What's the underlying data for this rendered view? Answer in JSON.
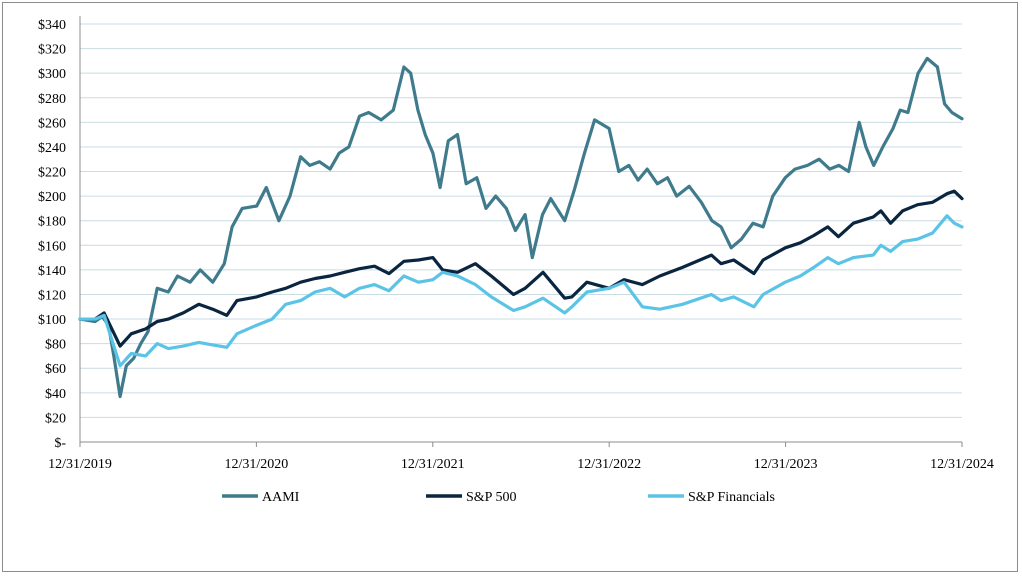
{
  "chart_data": {
    "type": "line",
    "x_ticks": [
      "12/31/2019",
      "12/31/2020",
      "12/31/2021",
      "12/31/2022",
      "12/31/2023",
      "12/31/2024"
    ],
    "y_ticks": [
      "$340",
      "$320",
      "$300",
      "$280",
      "$260",
      "$240",
      "$220",
      "$200",
      "$180",
      "$160",
      "$140",
      "$120",
      "$100",
      "$80",
      "$60",
      "$40",
      "$20",
      "$-"
    ],
    "ylim": [
      0,
      340
    ],
    "grid": true,
    "legend_position": "bottom",
    "series": [
      {
        "name": "AAMI",
        "color": "#3f7b8c",
        "points": [
          [
            "2019-12-31",
            100
          ],
          [
            "2020-01-31",
            98
          ],
          [
            "2020-02-15",
            102
          ],
          [
            "2020-02-28",
            95
          ],
          [
            "2020-03-10",
            70
          ],
          [
            "2020-03-23",
            37
          ],
          [
            "2020-04-05",
            62
          ],
          [
            "2020-04-20",
            68
          ],
          [
            "2020-05-05",
            80
          ],
          [
            "2020-05-20",
            90
          ],
          [
            "2020-06-08",
            125
          ],
          [
            "2020-07-01",
            122
          ],
          [
            "2020-07-20",
            135
          ],
          [
            "2020-08-15",
            130
          ],
          [
            "2020-09-05",
            140
          ],
          [
            "2020-10-01",
            130
          ],
          [
            "2020-10-25",
            145
          ],
          [
            "2020-11-10",
            175
          ],
          [
            "2020-12-01",
            190
          ],
          [
            "2020-12-31",
            192
          ],
          [
            "2021-01-20",
            207
          ],
          [
            "2021-02-15",
            180
          ],
          [
            "2021-03-10",
            200
          ],
          [
            "2021-04-01",
            232
          ],
          [
            "2021-04-20",
            225
          ],
          [
            "2021-05-10",
            228
          ],
          [
            "2021-06-01",
            222
          ],
          [
            "2021-06-20",
            235
          ],
          [
            "2021-07-10",
            240
          ],
          [
            "2021-08-01",
            265
          ],
          [
            "2021-08-20",
            268
          ],
          [
            "2021-09-15",
            262
          ],
          [
            "2021-10-10",
            270
          ],
          [
            "2021-11-01",
            305
          ],
          [
            "2021-11-15",
            300
          ],
          [
            "2021-11-30",
            270
          ],
          [
            "2021-12-15",
            250
          ],
          [
            "2021-12-31",
            235
          ],
          [
            "2022-01-15",
            207
          ],
          [
            "2022-02-01",
            245
          ],
          [
            "2022-02-20",
            250
          ],
          [
            "2022-03-10",
            210
          ],
          [
            "2022-04-01",
            215
          ],
          [
            "2022-04-20",
            190
          ],
          [
            "2022-05-10",
            200
          ],
          [
            "2022-06-01",
            190
          ],
          [
            "2022-06-20",
            172
          ],
          [
            "2022-07-10",
            185
          ],
          [
            "2022-07-25",
            150
          ],
          [
            "2022-08-15",
            185
          ],
          [
            "2022-09-01",
            198
          ],
          [
            "2022-09-30",
            180
          ],
          [
            "2022-10-20",
            205
          ],
          [
            "2022-11-10",
            235
          ],
          [
            "2022-12-01",
            262
          ],
          [
            "2022-12-31",
            255
          ],
          [
            "2023-01-20",
            220
          ],
          [
            "2023-02-10",
            225
          ],
          [
            "2023-03-01",
            213
          ],
          [
            "2023-03-20",
            222
          ],
          [
            "2023-04-10",
            210
          ],
          [
            "2023-05-01",
            215
          ],
          [
            "2023-05-20",
            200
          ],
          [
            "2023-06-15",
            208
          ],
          [
            "2023-07-10",
            195
          ],
          [
            "2023-08-01",
            180
          ],
          [
            "2023-08-20",
            175
          ],
          [
            "2023-09-10",
            158
          ],
          [
            "2023-10-01",
            165
          ],
          [
            "2023-10-25",
            178
          ],
          [
            "2023-11-15",
            175
          ],
          [
            "2023-12-05",
            200
          ],
          [
            "2023-12-31",
            215
          ],
          [
            "2024-01-20",
            222
          ],
          [
            "2024-02-15",
            225
          ],
          [
            "2024-03-10",
            230
          ],
          [
            "2024-04-01",
            222
          ],
          [
            "2024-04-20",
            225
          ],
          [
            "2024-05-10",
            220
          ],
          [
            "2024-06-01",
            260
          ],
          [
            "2024-06-15",
            240
          ],
          [
            "2024-07-01",
            225
          ],
          [
            "2024-07-20",
            240
          ],
          [
            "2024-08-10",
            255
          ],
          [
            "2024-08-25",
            270
          ],
          [
            "2024-09-10",
            268
          ],
          [
            "2024-10-01",
            300
          ],
          [
            "2024-10-20",
            312
          ],
          [
            "2024-11-10",
            305
          ],
          [
            "2024-11-25",
            275
          ],
          [
            "2024-12-10",
            268
          ],
          [
            "2024-12-31",
            263
          ]
        ]
      },
      {
        "name": "S&P 500",
        "color": "#0a2540",
        "points": [
          [
            "2019-12-31",
            100
          ],
          [
            "2020-01-31",
            100
          ],
          [
            "2020-02-19",
            105
          ],
          [
            "2020-03-23",
            78
          ],
          [
            "2020-04-15",
            88
          ],
          [
            "2020-05-15",
            92
          ],
          [
            "2020-06-08",
            98
          ],
          [
            "2020-07-01",
            100
          ],
          [
            "2020-08-01",
            105
          ],
          [
            "2020-09-02",
            112
          ],
          [
            "2020-10-01",
            108
          ],
          [
            "2020-10-30",
            103
          ],
          [
            "2020-11-20",
            115
          ],
          [
            "2020-12-31",
            118
          ],
          [
            "2021-02-01",
            122
          ],
          [
            "2021-03-01",
            125
          ],
          [
            "2021-04-01",
            130
          ],
          [
            "2021-05-01",
            133
          ],
          [
            "2021-06-01",
            135
          ],
          [
            "2021-07-01",
            138
          ],
          [
            "2021-08-01",
            141
          ],
          [
            "2021-09-01",
            143
          ],
          [
            "2021-10-01",
            137
          ],
          [
            "2021-11-01",
            147
          ],
          [
            "2021-12-01",
            148
          ],
          [
            "2021-12-31",
            150
          ],
          [
            "2022-01-20",
            140
          ],
          [
            "2022-02-20",
            138
          ],
          [
            "2022-03-29",
            145
          ],
          [
            "2022-05-01",
            135
          ],
          [
            "2022-06-16",
            120
          ],
          [
            "2022-07-10",
            125
          ],
          [
            "2022-08-16",
            138
          ],
          [
            "2022-09-30",
            117
          ],
          [
            "2022-10-15",
            118
          ],
          [
            "2022-11-15",
            130
          ],
          [
            "2022-12-31",
            125
          ],
          [
            "2023-01-31",
            132
          ],
          [
            "2023-03-10",
            128
          ],
          [
            "2023-04-15",
            135
          ],
          [
            "2023-06-01",
            142
          ],
          [
            "2023-07-31",
            152
          ],
          [
            "2023-08-20",
            145
          ],
          [
            "2023-09-15",
            148
          ],
          [
            "2023-10-27",
            137
          ],
          [
            "2023-11-15",
            148
          ],
          [
            "2023-12-31",
            158
          ],
          [
            "2024-01-31",
            162
          ],
          [
            "2024-02-28",
            168
          ],
          [
            "2024-03-28",
            175
          ],
          [
            "2024-04-19",
            167
          ],
          [
            "2024-05-20",
            178
          ],
          [
            "2024-06-30",
            183
          ],
          [
            "2024-07-16",
            188
          ],
          [
            "2024-08-05",
            178
          ],
          [
            "2024-08-30",
            188
          ],
          [
            "2024-09-30",
            193
          ],
          [
            "2024-10-31",
            195
          ],
          [
            "2024-11-30",
            202
          ],
          [
            "2024-12-15",
            204
          ],
          [
            "2024-12-31",
            198
          ]
        ]
      },
      {
        "name": "S&P Financials",
        "color": "#5bc4e6",
        "points": [
          [
            "2019-12-31",
            100
          ],
          [
            "2020-01-31",
            100
          ],
          [
            "2020-02-19",
            103
          ],
          [
            "2020-03-23",
            62
          ],
          [
            "2020-04-15",
            72
          ],
          [
            "2020-05-15",
            70
          ],
          [
            "2020-06-08",
            80
          ],
          [
            "2020-07-01",
            76
          ],
          [
            "2020-08-01",
            78
          ],
          [
            "2020-09-02",
            81
          ],
          [
            "2020-10-01",
            79
          ],
          [
            "2020-10-30",
            77
          ],
          [
            "2020-11-20",
            88
          ],
          [
            "2020-12-31",
            95
          ],
          [
            "2021-02-01",
            100
          ],
          [
            "2021-03-01",
            112
          ],
          [
            "2021-04-01",
            115
          ],
          [
            "2021-05-01",
            122
          ],
          [
            "2021-06-01",
            125
          ],
          [
            "2021-07-01",
            118
          ],
          [
            "2021-08-01",
            125
          ],
          [
            "2021-09-01",
            128
          ],
          [
            "2021-10-01",
            123
          ],
          [
            "2021-11-01",
            135
          ],
          [
            "2021-12-01",
            130
          ],
          [
            "2021-12-31",
            132
          ],
          [
            "2022-01-20",
            138
          ],
          [
            "2022-02-20",
            135
          ],
          [
            "2022-03-29",
            128
          ],
          [
            "2022-05-01",
            118
          ],
          [
            "2022-06-16",
            107
          ],
          [
            "2022-07-10",
            110
          ],
          [
            "2022-08-16",
            117
          ],
          [
            "2022-09-30",
            105
          ],
          [
            "2022-10-15",
            110
          ],
          [
            "2022-11-15",
            122
          ],
          [
            "2022-12-31",
            125
          ],
          [
            "2023-01-31",
            130
          ],
          [
            "2023-03-10",
            110
          ],
          [
            "2023-04-15",
            108
          ],
          [
            "2023-06-01",
            112
          ],
          [
            "2023-07-31",
            120
          ],
          [
            "2023-08-20",
            115
          ],
          [
            "2023-09-15",
            118
          ],
          [
            "2023-10-27",
            110
          ],
          [
            "2023-11-15",
            120
          ],
          [
            "2023-12-31",
            130
          ],
          [
            "2024-01-31",
            135
          ],
          [
            "2024-02-28",
            142
          ],
          [
            "2024-03-28",
            150
          ],
          [
            "2024-04-19",
            145
          ],
          [
            "2024-05-20",
            150
          ],
          [
            "2024-06-30",
            152
          ],
          [
            "2024-07-16",
            160
          ],
          [
            "2024-08-05",
            155
          ],
          [
            "2024-08-30",
            163
          ],
          [
            "2024-09-30",
            165
          ],
          [
            "2024-10-31",
            170
          ],
          [
            "2024-11-30",
            184
          ],
          [
            "2024-12-15",
            178
          ],
          [
            "2024-12-31",
            175
          ]
        ]
      }
    ]
  }
}
